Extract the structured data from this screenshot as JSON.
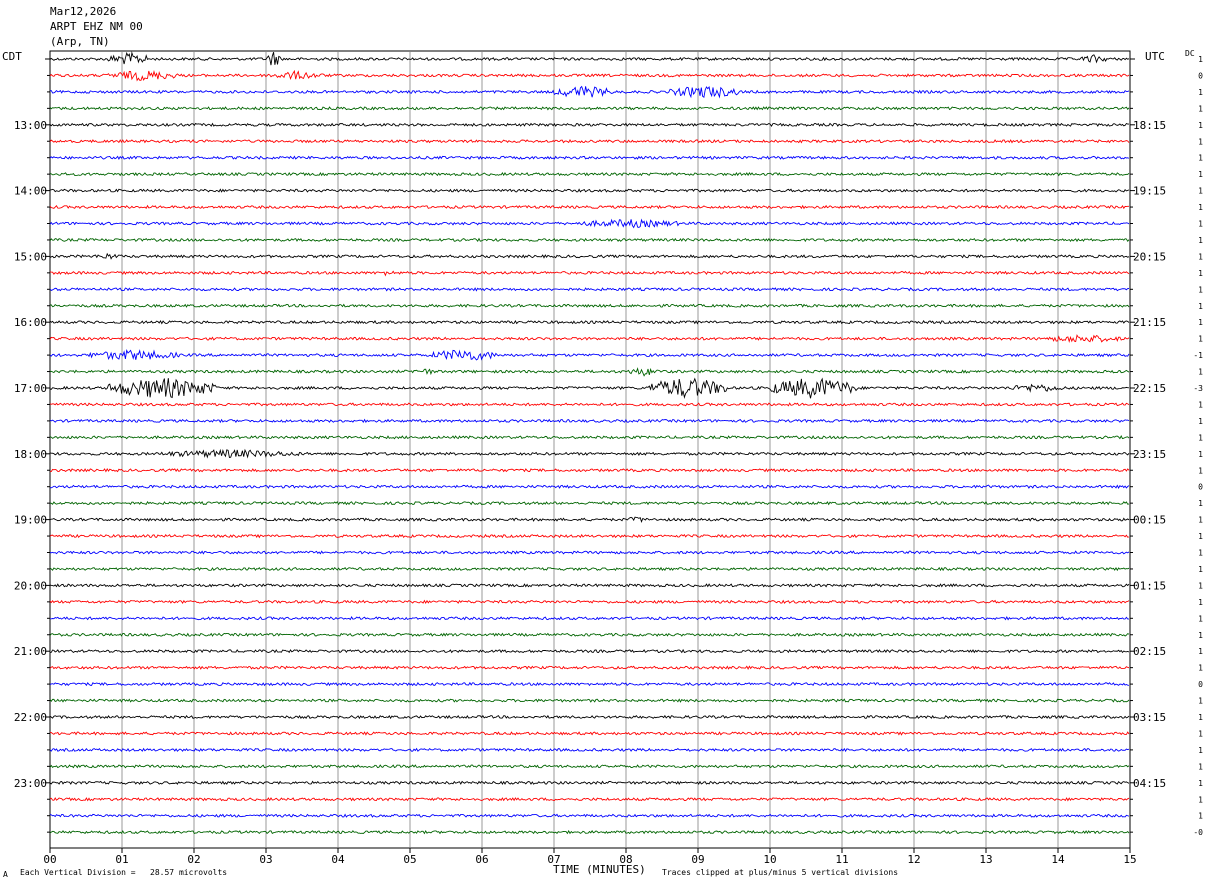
{
  "header": {
    "date": "Mar12,2026",
    "station": "ARPT EHZ NM 00",
    "location": "(Arp, TN)"
  },
  "left_tz": "CDT",
  "right_tz": "UTC",
  "dc_label": "DC",
  "footer": {
    "scale_text": "Each Vertical Division =   28.57 microvolts",
    "clip_text": "Traces clipped at plus/minus 5 vertical divisions",
    "corner_mark": "A"
  },
  "colors": {
    "trace_cycle": [
      "#000000",
      "#ff0000",
      "#0000ff",
      "#006400"
    ],
    "grid": "#808080"
  },
  "chart_data": {
    "type": "line",
    "title": "",
    "xlabel": "TIME (MINUTES)",
    "ylabel": "",
    "xlim": [
      0,
      15
    ],
    "x_ticks": [
      "00",
      "01",
      "02",
      "03",
      "04",
      "05",
      "06",
      "07",
      "08",
      "09",
      "10",
      "11",
      "12",
      "13",
      "14",
      "15"
    ],
    "rows": 48,
    "minutes_per_row": 15,
    "left_hour_labels": [
      {
        "row": 4,
        "label": "13:00"
      },
      {
        "row": 8,
        "label": "14:00"
      },
      {
        "row": 12,
        "label": "15:00"
      },
      {
        "row": 16,
        "label": "16:00"
      },
      {
        "row": 20,
        "label": "17:00"
      },
      {
        "row": 24,
        "label": "18:00"
      },
      {
        "row": 28,
        "label": "19:00"
      },
      {
        "row": 32,
        "label": "20:00"
      },
      {
        "row": 36,
        "label": "21:00"
      },
      {
        "row": 40,
        "label": "22:00"
      },
      {
        "row": 44,
        "label": "23:00"
      }
    ],
    "right_hour_labels": [
      {
        "row": 4,
        "label": "18:15"
      },
      {
        "row": 8,
        "label": "19:15"
      },
      {
        "row": 12,
        "label": "20:15"
      },
      {
        "row": 16,
        "label": "21:15"
      },
      {
        "row": 20,
        "label": "22:15"
      },
      {
        "row": 24,
        "label": "23:15"
      },
      {
        "row": 28,
        "label": "00:15"
      },
      {
        "row": 32,
        "label": "01:15"
      },
      {
        "row": 36,
        "label": "02:15"
      },
      {
        "row": 40,
        "label": "03:15"
      },
      {
        "row": 44,
        "label": "04:15"
      }
    ],
    "dc_offsets": [
      "1",
      "0",
      "1",
      "1",
      "1",
      "1",
      "1",
      "1",
      "1",
      "1",
      "1",
      "1",
      "1",
      "1",
      "1",
      "1",
      "1",
      "1",
      "-1",
      "1",
      "-3",
      "1",
      "1",
      "1",
      "1",
      "1",
      "0",
      "1",
      "1",
      "1",
      "1",
      "1",
      "1",
      "1",
      "1",
      "1",
      "1",
      "1",
      "0",
      "1",
      "1",
      "1",
      "1",
      "1",
      "1",
      "1",
      "1",
      "-0"
    ],
    "noise_amplitude_divisions": 0.6,
    "events": [
      {
        "row": 0,
        "start_min": 0.8,
        "end_min": 1.4,
        "amplitude": 3
      },
      {
        "row": 0,
        "start_min": 3.0,
        "end_min": 3.2,
        "amplitude": 4
      },
      {
        "row": 0,
        "start_min": 14.3,
        "end_min": 14.7,
        "amplitude": 2
      },
      {
        "row": 1,
        "start_min": 0.8,
        "end_min": 1.8,
        "amplitude": 2.5
      },
      {
        "row": 1,
        "start_min": 3.0,
        "end_min": 3.8,
        "amplitude": 2
      },
      {
        "row": 2,
        "start_min": 7.0,
        "end_min": 7.8,
        "amplitude": 3
      },
      {
        "row": 2,
        "start_min": 8.6,
        "end_min": 9.6,
        "amplitude": 3
      },
      {
        "row": 10,
        "start_min": 7.3,
        "end_min": 8.8,
        "amplitude": 2
      },
      {
        "row": 12,
        "start_min": 0.6,
        "end_min": 1.0,
        "amplitude": 1.5
      },
      {
        "row": 13,
        "start_min": 4.6,
        "end_min": 4.8,
        "amplitude": 1.5
      },
      {
        "row": 17,
        "start_min": 13.8,
        "end_min": 14.9,
        "amplitude": 2
      },
      {
        "row": 18,
        "start_min": 0.5,
        "end_min": 1.8,
        "amplitude": 2.5
      },
      {
        "row": 18,
        "start_min": 5.3,
        "end_min": 6.2,
        "amplitude": 3
      },
      {
        "row": 19,
        "start_min": 5.0,
        "end_min": 5.4,
        "amplitude": 1.5
      },
      {
        "row": 19,
        "start_min": 8.0,
        "end_min": 8.5,
        "amplitude": 2
      },
      {
        "row": 20,
        "start_min": 0.8,
        "end_min": 2.3,
        "amplitude": 5
      },
      {
        "row": 20,
        "start_min": 8.3,
        "end_min": 9.4,
        "amplitude": 5
      },
      {
        "row": 20,
        "start_min": 10.0,
        "end_min": 11.2,
        "amplitude": 5
      },
      {
        "row": 20,
        "start_min": 13.3,
        "end_min": 14.1,
        "amplitude": 2
      },
      {
        "row": 24,
        "start_min": 1.5,
        "end_min": 3.5,
        "amplitude": 2
      },
      {
        "row": 26,
        "start_min": 13.0,
        "end_min": 13.1,
        "amplitude": 1.5
      },
      {
        "row": 28,
        "start_min": 8.0,
        "end_min": 8.3,
        "amplitude": 1.5
      }
    ]
  }
}
